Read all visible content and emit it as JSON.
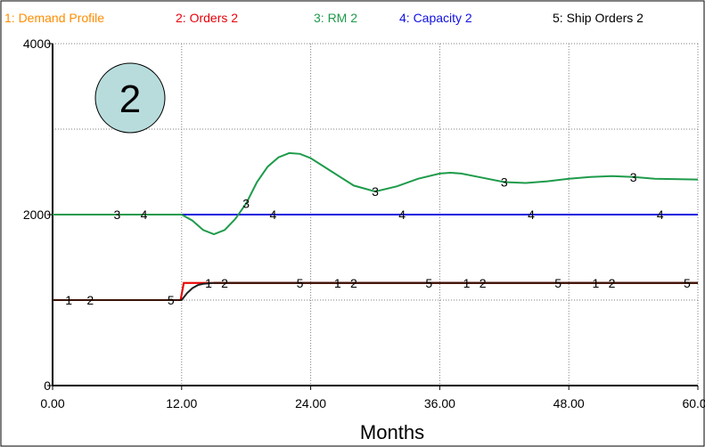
{
  "badge": "2",
  "colors": {
    "demand": "#FF8C00",
    "orders": "#E8000B",
    "rm": "#1E9B4B",
    "capacity": "#1010E0",
    "ship": "#222222",
    "overlay": "#3A1208",
    "badge_fill": "#B8DCDC"
  },
  "chart_data": {
    "type": "line",
    "xlabel": "Months",
    "ylabel": "",
    "xlim": [
      0,
      60
    ],
    "ylim": [
      0,
      4000
    ],
    "x_ticks": [
      "0.00",
      "12.00",
      "24.00",
      "36.00",
      "48.00",
      "60.00"
    ],
    "y_ticks": [
      "0",
      "2000",
      "4000"
    ],
    "grid": true,
    "legend_position": "top",
    "series": [
      {
        "id": "1",
        "name": "1: Demand Profile",
        "color_key": "demand",
        "points": [
          [
            0,
            1000
          ],
          [
            11.9,
            1000
          ],
          [
            12.2,
            1200
          ],
          [
            60,
            1200
          ]
        ],
        "markers": [
          1.5,
          14.5,
          26.5,
          38.5,
          50.5
        ]
      },
      {
        "id": "2",
        "name": "2: Orders 2",
        "color_key": "orders",
        "points": [
          [
            0,
            1000
          ],
          [
            11.9,
            1000
          ],
          [
            12.2,
            1200
          ],
          [
            60,
            1200
          ]
        ],
        "markers": [
          3.5,
          16,
          28,
          40,
          52
        ]
      },
      {
        "id": "3",
        "name": "3: RM 2",
        "color_key": "rm",
        "points": [
          [
            0,
            2000
          ],
          [
            12,
            2000
          ],
          [
            13,
            1930
          ],
          [
            14,
            1820
          ],
          [
            15,
            1770
          ],
          [
            16,
            1820
          ],
          [
            17,
            1950
          ],
          [
            18,
            2130
          ],
          [
            19,
            2380
          ],
          [
            20,
            2560
          ],
          [
            21,
            2670
          ],
          [
            22,
            2720
          ],
          [
            23,
            2710
          ],
          [
            24,
            2660
          ],
          [
            26,
            2500
          ],
          [
            28,
            2340
          ],
          [
            30,
            2270
          ],
          [
            32,
            2330
          ],
          [
            34,
            2420
          ],
          [
            36,
            2480
          ],
          [
            37,
            2490
          ],
          [
            38,
            2480
          ],
          [
            40,
            2430
          ],
          [
            42,
            2380
          ],
          [
            44,
            2370
          ],
          [
            46,
            2390
          ],
          [
            48,
            2420
          ],
          [
            50,
            2440
          ],
          [
            52,
            2450
          ],
          [
            54,
            2440
          ],
          [
            56,
            2420
          ],
          [
            60,
            2410
          ]
        ],
        "markers": [
          6,
          18,
          30,
          42,
          54
        ]
      },
      {
        "id": "4",
        "name": "4: Capacity 2",
        "color_key": "capacity",
        "points": [
          [
            0,
            2000
          ],
          [
            60,
            2000
          ]
        ],
        "markers": [
          8.5,
          20.5,
          32.5,
          44.5,
          56.5
        ]
      },
      {
        "id": "5",
        "name": "5: Ship Orders 2",
        "color_key": "ship",
        "points": [
          [
            0,
            1000
          ],
          [
            12,
            1000
          ],
          [
            12.5,
            1080
          ],
          [
            13,
            1140
          ],
          [
            13.5,
            1175
          ],
          [
            14,
            1190
          ],
          [
            15,
            1200
          ],
          [
            60,
            1200
          ]
        ],
        "markers": [
          11,
          23,
          35,
          47,
          59
        ]
      }
    ]
  }
}
